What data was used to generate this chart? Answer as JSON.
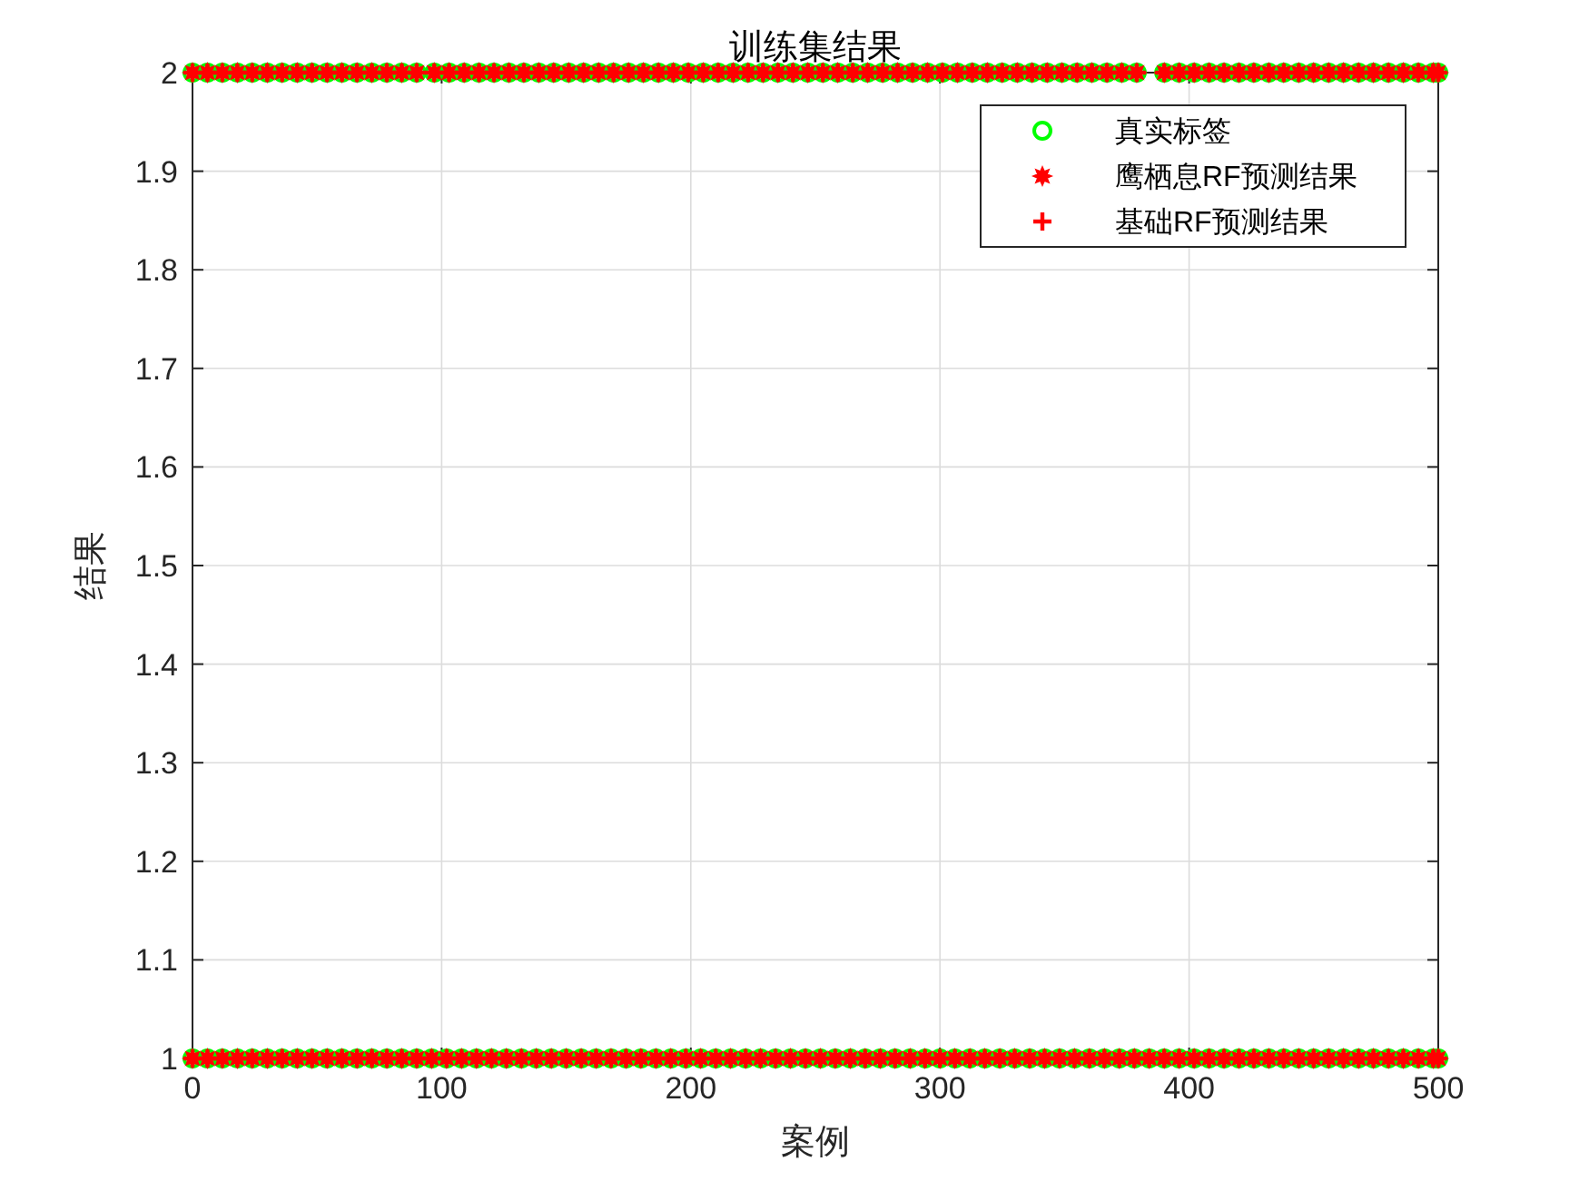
{
  "chart_data": {
    "type": "scatter",
    "title": "训练集结果",
    "xlabel": "案例",
    "ylabel": "结果",
    "xlim": [
      0,
      500
    ],
    "xticks": [
      0,
      100,
      200,
      300,
      400,
      500
    ],
    "ylim": [
      1,
      2
    ],
    "yticks": [
      1,
      1.1,
      1.2,
      1.3,
      1.4,
      1.5,
      1.6,
      1.7,
      1.8,
      1.9,
      2
    ],
    "grid": true,
    "legend": "top right",
    "x": [
      0,
      6,
      12,
      18,
      24,
      30,
      36,
      42,
      48,
      54,
      60,
      66,
      72,
      78,
      84,
      90,
      97,
      103,
      109,
      115,
      121,
      127,
      133,
      139,
      145,
      151,
      157,
      163,
      169,
      175,
      181,
      187,
      193,
      199,
      205,
      211,
      217,
      223,
      229,
      235,
      241,
      247,
      253,
      259,
      265,
      271,
      277,
      283,
      289,
      295,
      301,
      307,
      313,
      319,
      325,
      331,
      337,
      343,
      349,
      355,
      361,
      367,
      373,
      379,
      390,
      396,
      402,
      408,
      414,
      420,
      426,
      432,
      438,
      444,
      450,
      456,
      462,
      468,
      474,
      480,
      486,
      492,
      498,
      500,
      0,
      6,
      12,
      18,
      24,
      30,
      36,
      42,
      48,
      54,
      60,
      66,
      72,
      78,
      84,
      90,
      96,
      102,
      108,
      114,
      120,
      126,
      132,
      138,
      144,
      150,
      156,
      162,
      168,
      174,
      180,
      186,
      192,
      198,
      204,
      210,
      216,
      222,
      228,
      234,
      240,
      246,
      252,
      258,
      264,
      270,
      276,
      282,
      288,
      294,
      300,
      306,
      312,
      318,
      324,
      330,
      336,
      342,
      348,
      354,
      360,
      366,
      372,
      378,
      384,
      390,
      396,
      402,
      408,
      414,
      420,
      426,
      432,
      438,
      444,
      450,
      456,
      462,
      468,
      474,
      480,
      486,
      492,
      498,
      500
    ],
    "series": [
      {
        "name": "真实标签",
        "color": "#00ff00",
        "marker": "circle",
        "values": [
          2,
          2,
          2,
          2,
          2,
          2,
          2,
          2,
          2,
          2,
          2,
          2,
          2,
          2,
          2,
          2,
          2,
          2,
          2,
          2,
          2,
          2,
          2,
          2,
          2,
          2,
          2,
          2,
          2,
          2,
          2,
          2,
          2,
          2,
          2,
          2,
          2,
          2,
          2,
          2,
          2,
          2,
          2,
          2,
          2,
          2,
          2,
          2,
          2,
          2,
          2,
          2,
          2,
          2,
          2,
          2,
          2,
          2,
          2,
          2,
          2,
          2,
          2,
          2,
          2,
          2,
          2,
          2,
          2,
          2,
          2,
          2,
          2,
          2,
          2,
          2,
          2,
          2,
          2,
          2,
          2,
          2,
          2,
          2,
          1,
          1,
          1,
          1,
          1,
          1,
          1,
          1,
          1,
          1,
          1,
          1,
          1,
          1,
          1,
          1,
          1,
          1,
          1,
          1,
          1,
          1,
          1,
          1,
          1,
          1,
          1,
          1,
          1,
          1,
          1,
          1,
          1,
          1,
          1,
          1,
          1,
          1,
          1,
          1,
          1,
          1,
          1,
          1,
          1,
          1,
          1,
          1,
          1,
          1,
          1,
          1,
          1,
          1,
          1,
          1,
          1,
          1,
          1,
          1,
          1,
          1,
          1,
          1,
          1,
          1,
          1,
          1,
          1,
          1,
          1,
          1,
          1,
          1,
          1,
          1,
          1,
          1,
          1,
          1,
          1,
          1,
          1,
          1,
          1
        ]
      },
      {
        "name": "鹰栖息RF预测结果",
        "color": "#ff0000",
        "marker": "star",
        "values": [
          2,
          2,
          2,
          2,
          2,
          2,
          2,
          2,
          2,
          2,
          2,
          2,
          2,
          2,
          2,
          2,
          2,
          2,
          2,
          2,
          2,
          2,
          2,
          2,
          2,
          2,
          2,
          2,
          2,
          2,
          2,
          2,
          2,
          2,
          2,
          2,
          2,
          2,
          2,
          2,
          2,
          2,
          2,
          2,
          2,
          2,
          2,
          2,
          2,
          2,
          2,
          2,
          2,
          2,
          2,
          2,
          2,
          2,
          2,
          2,
          2,
          2,
          2,
          2,
          2,
          2,
          2,
          2,
          2,
          2,
          2,
          2,
          2,
          2,
          2,
          2,
          2,
          2,
          2,
          2,
          2,
          2,
          2,
          2,
          1,
          1,
          1,
          1,
          1,
          1,
          1,
          1,
          1,
          1,
          1,
          1,
          1,
          1,
          1,
          1,
          1,
          1,
          1,
          1,
          1,
          1,
          1,
          1,
          1,
          1,
          1,
          1,
          1,
          1,
          1,
          1,
          1,
          1,
          1,
          1,
          1,
          1,
          1,
          1,
          1,
          1,
          1,
          1,
          1,
          1,
          1,
          1,
          1,
          1,
          1,
          1,
          1,
          1,
          1,
          1,
          1,
          1,
          1,
          1,
          1,
          1,
          1,
          1,
          1,
          1,
          1,
          1,
          1,
          1,
          1,
          1,
          1,
          1,
          1,
          1,
          1,
          1,
          1,
          1,
          1,
          1,
          1,
          1,
          1
        ]
      },
      {
        "name": "基础RF预测结果",
        "color": "#ff0000",
        "marker": "cross",
        "values": [
          2,
          2,
          2,
          2,
          2,
          2,
          2,
          2,
          2,
          2,
          2,
          2,
          2,
          2,
          2,
          2,
          2,
          2,
          2,
          2,
          2,
          2,
          2,
          2,
          2,
          2,
          2,
          2,
          2,
          2,
          2,
          2,
          2,
          2,
          2,
          2,
          2,
          2,
          2,
          2,
          2,
          2,
          2,
          2,
          2,
          2,
          2,
          2,
          2,
          2,
          2,
          2,
          2,
          2,
          2,
          2,
          2,
          2,
          2,
          2,
          2,
          2,
          2,
          2,
          2,
          2,
          2,
          2,
          2,
          2,
          2,
          2,
          2,
          2,
          2,
          2,
          2,
          2,
          2,
          2,
          2,
          2,
          2,
          2,
          1,
          1,
          1,
          1,
          1,
          1,
          1,
          1,
          1,
          1,
          1,
          1,
          1,
          1,
          1,
          1,
          1,
          1,
          1,
          1,
          1,
          1,
          1,
          1,
          1,
          1,
          1,
          1,
          1,
          1,
          1,
          1,
          1,
          1,
          1,
          1,
          1,
          1,
          1,
          1,
          1,
          1,
          1,
          1,
          1,
          1,
          1,
          1,
          1,
          1,
          1,
          1,
          1,
          1,
          1,
          1,
          1,
          1,
          1,
          1,
          1,
          1,
          1,
          1,
          1,
          1,
          1,
          1,
          1,
          1,
          1,
          1,
          1,
          1,
          1,
          1,
          1,
          1,
          1,
          1,
          1,
          1,
          1,
          1,
          1
        ]
      }
    ]
  }
}
